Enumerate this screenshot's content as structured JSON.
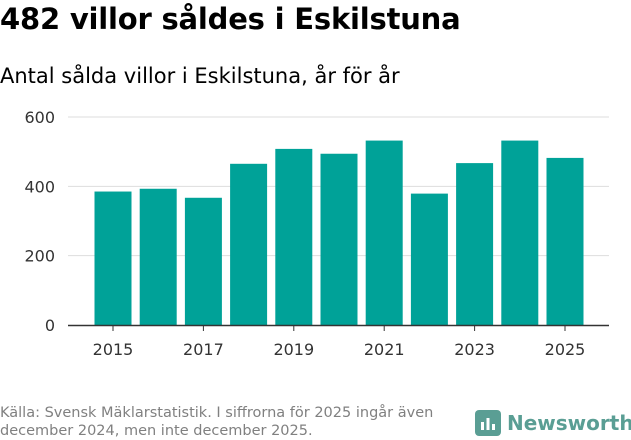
{
  "header": {
    "title": "482 villor såldes i Eskilstuna",
    "subtitle": "Antal sålda villor i Eskilstuna, år för år"
  },
  "footer": {
    "source": "Källa: Svensk Mäklarstatistik. I siffrorna för 2025 ingår även december 2024, men inte december 2025.",
    "brand": "Newsworthy"
  },
  "colors": {
    "bar": "#00a298",
    "grid": "#dddddd",
    "axis": "#333333",
    "brand": "#5a9e94"
  },
  "chart_data": {
    "type": "bar",
    "title": "Antal sålda villor i Eskilstuna, år för år",
    "categories": [
      "2015",
      "2016",
      "2017",
      "2018",
      "2019",
      "2020",
      "2021",
      "2022",
      "2023",
      "2024",
      "2025"
    ],
    "values": [
      385,
      393,
      367,
      465,
      508,
      494,
      532,
      379,
      467,
      532,
      482
    ],
    "x_tick_labels": [
      "2015",
      "2017",
      "2019",
      "2021",
      "2023",
      "2025"
    ],
    "y_ticks": [
      0,
      200,
      400,
      600
    ],
    "ylim": [
      0,
      600
    ],
    "xlabel": "",
    "ylabel": "",
    "grid": true
  }
}
